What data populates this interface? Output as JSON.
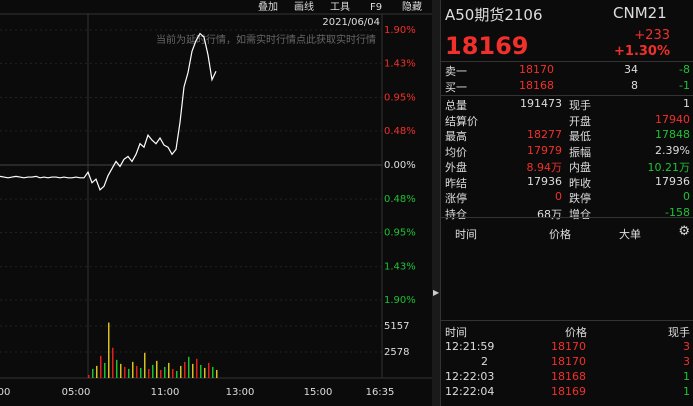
{
  "toolbar": [
    "叠加",
    "画线",
    "工具",
    "F9",
    "隐藏"
  ],
  "chart": {
    "date": "2021/06/04",
    "notice": "当前为延时行情，如需实时行情点此获取实时行情",
    "price_axis": {
      "ylim": [
        -1.9,
        1.9
      ],
      "yticks": [
        {
          "value": 1.9,
          "label": "1.90%"
        },
        {
          "value": 1.43,
          "label": "1.43%"
        },
        {
          "value": 0.95,
          "label": "0.95%"
        },
        {
          "value": 0.48,
          "label": "0.48%"
        },
        {
          "value": 0,
          "label": "0.00%"
        },
        {
          "value": -0.48,
          "label": "0.48%"
        },
        {
          "value": -0.95,
          "label": "0.95%"
        },
        {
          "value": -1.43,
          "label": "1.43%"
        },
        {
          "value": -1.9,
          "label": "1.90%"
        }
      ]
    },
    "price_line": {
      "color": "#ffffff",
      "values": [
        -0.16,
        -0.17,
        -0.18,
        -0.17,
        -0.16,
        -0.17,
        -0.18,
        -0.17,
        -0.17,
        -0.16,
        -0.18,
        -0.17,
        -0.18,
        -0.17,
        -0.17,
        -0.18,
        -0.17,
        -0.18,
        -0.18,
        -0.17,
        -0.18,
        -0.18,
        -0.1,
        -0.25,
        -0.2,
        -0.35,
        -0.3,
        -0.15,
        -0.05,
        0.05,
        -0.02,
        0.08,
        0.12,
        0.05,
        0.15,
        0.3,
        0.25,
        0.42,
        0.35,
        0.3,
        0.38,
        0.28,
        0.25,
        0.15,
        0.22,
        0.6,
        1.1,
        1.3,
        1.6,
        1.75,
        1.85,
        1.8,
        1.55,
        1.2,
        1.32
      ]
    },
    "volume": {
      "ylim": [
        0,
        7735
      ],
      "yticks": [
        5157,
        2578
      ],
      "colors": [
        "#e0221e",
        "#19c02e",
        "#d8c020"
      ],
      "values": [
        300,
        900,
        1200,
        2200,
        1500,
        5500,
        3000,
        1800,
        1400,
        1100,
        900,
        1600,
        1200,
        1000,
        2500,
        900,
        1300,
        1700,
        800,
        1100,
        1500,
        900,
        700,
        1200,
        1600,
        2100,
        1400,
        1900,
        1300,
        1000,
        1500,
        1100,
        800
      ]
    },
    "time_labels": [
      "00",
      "05:00",
      "11:00",
      "13:00",
      "15:00",
      "16:35"
    ]
  },
  "quote": {
    "name": "A50期货2106",
    "code": "CNM21",
    "price": "18169",
    "change": "+233",
    "change_pct": "+1.30%",
    "book": [
      [
        "卖一",
        "18170",
        "34",
        "-8"
      ],
      [
        "买一",
        "18168",
        "8",
        "-1"
      ]
    ],
    "stats": [
      [
        "总量",
        "191473",
        "现手",
        "1"
      ],
      [
        "结算价",
        null,
        "开盘",
        "17940"
      ],
      [
        "最高",
        "18277",
        "最低",
        "17848"
      ],
      [
        "均价",
        "17979",
        "振幅",
        "2.39%"
      ],
      [
        "外盘",
        "8.94万",
        "内盘",
        "10.21万"
      ],
      [
        "昨结",
        "17936",
        "昨收",
        "17936"
      ],
      [
        "涨停",
        "0",
        "跌停",
        "0"
      ],
      [
        "持仓",
        "68万",
        "增仓",
        "-158"
      ]
    ],
    "tabs": [
      "时间",
      "价格",
      "大单"
    ],
    "trades_header": [
      "时间",
      "价格",
      "现手"
    ],
    "trades": [
      [
        "12:21:59",
        "18170",
        "3"
      ],
      [
        "2",
        "18170",
        "3"
      ],
      [
        "12:22:03",
        "18168",
        "1"
      ],
      [
        "12:22:04",
        "18169",
        "1"
      ]
    ]
  }
}
